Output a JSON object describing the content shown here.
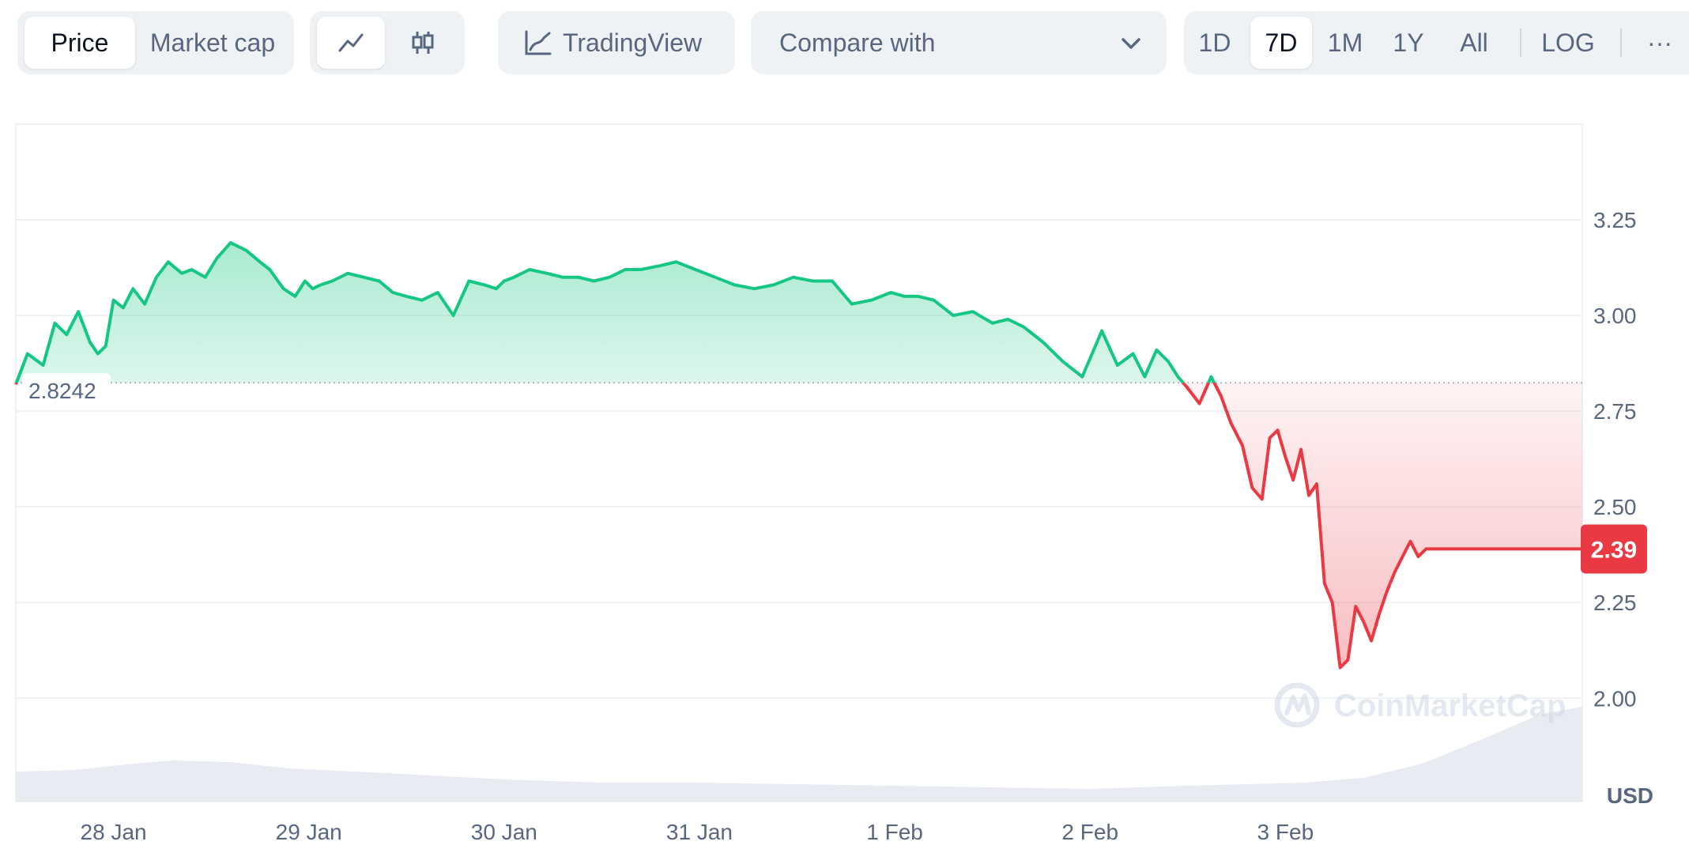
{
  "toolbar": {
    "price_label": "Price",
    "market_cap_label": "Market cap",
    "tradingview_label": "TradingView",
    "compare_label": "Compare with",
    "range_1d": "1D",
    "range_7d": "7D",
    "range_1m": "1M",
    "range_1y": "1Y",
    "range_all": "All",
    "log_label": "LOG",
    "more_label": "···",
    "line_chart_icon": "line-chart-icon",
    "candlestick_icon": "candlestick-icon",
    "tradingview_icon": "chart-line-icon",
    "dropdown_icon": "chevron-down-icon",
    "selected_range": "7D",
    "selected_metric": "Price"
  },
  "colors": {
    "up": "#16c784",
    "down": "#ea3943",
    "grid": "#eff2f5",
    "volume": "#e8ecf2"
  },
  "chart_data": {
    "type": "area",
    "currency_label": "USD",
    "watermark": "CoinMarketCap",
    "baseline_value": 2.8242,
    "baseline_label": "2.8242",
    "current_value": 2.39,
    "current_label": "2.39",
    "ylim": [
      1.73,
      3.5
    ],
    "y_ticks": [
      {
        "value": 2.0,
        "label": "2.00"
      },
      {
        "value": 2.25,
        "label": "2.25"
      },
      {
        "value": 2.5,
        "label": "2.50"
      },
      {
        "value": 2.75,
        "label": "2.75"
      },
      {
        "value": 3.0,
        "label": "3.00"
      },
      {
        "value": 3.25,
        "label": "3.25"
      }
    ],
    "x_ticks": [
      {
        "t": 0.5,
        "label": "28 Jan"
      },
      {
        "t": 1.5,
        "label": "29 Jan"
      },
      {
        "t": 2.5,
        "label": "30 Jan"
      },
      {
        "t": 3.5,
        "label": "31 Jan"
      },
      {
        "t": 4.5,
        "label": "1 Feb"
      },
      {
        "t": 5.5,
        "label": "2 Feb"
      },
      {
        "t": 6.5,
        "label": "3 Feb"
      }
    ],
    "grid": true,
    "series": [
      {
        "x": [
          0.0,
          0.06,
          0.14,
          0.2,
          0.26,
          0.32,
          0.38,
          0.42,
          0.46,
          0.5,
          0.55,
          0.6,
          0.66,
          0.72,
          0.78,
          0.85,
          0.9,
          0.97,
          1.03,
          1.1,
          1.18,
          1.25,
          1.3,
          1.37,
          1.43,
          1.48,
          1.52,
          1.56,
          1.62,
          1.7,
          1.78,
          1.86,
          1.93,
          2.0,
          2.08,
          2.16,
          2.24,
          2.32,
          2.4,
          2.46,
          2.5,
          2.55,
          2.63,
          2.72,
          2.8,
          2.88,
          2.96,
          3.04,
          3.12,
          3.2,
          3.3,
          3.38,
          3.48,
          3.58,
          3.68,
          3.78,
          3.88,
          3.98,
          4.08,
          4.18,
          4.28,
          4.38,
          4.48,
          4.55,
          4.62,
          4.7,
          4.8,
          4.9,
          5.0,
          5.08,
          5.16,
          5.26,
          5.36,
          5.46,
          5.56,
          5.64,
          5.72,
          5.78,
          5.84,
          5.9,
          5.95,
          6.0,
          6.06,
          6.12,
          6.17,
          6.22,
          6.28,
          6.33,
          6.38,
          6.42,
          6.46,
          6.5,
          6.54,
          6.58,
          6.62,
          6.66,
          6.7,
          6.74,
          6.78,
          6.82,
          6.86,
          6.9,
          6.94,
          6.98,
          7.02,
          7.06,
          7.1,
          7.14,
          7.18,
          7.22,
          7.26,
          7.3,
          7.34,
          7.38,
          7.42,
          7.46,
          7.5,
          7.54,
          7.58,
          7.62,
          7.66,
          7.7,
          7.74,
          7.78,
          7.82,
          7.86,
          7.9,
          7.94,
          7.98,
          8.02
        ],
        "values": [
          2.82,
          2.9,
          2.87,
          2.98,
          2.95,
          3.01,
          2.93,
          2.9,
          2.92,
          3.04,
          3.02,
          3.07,
          3.03,
          3.1,
          3.14,
          3.11,
          3.12,
          3.1,
          3.15,
          3.19,
          3.17,
          3.14,
          3.12,
          3.07,
          3.05,
          3.09,
          3.07,
          3.08,
          3.09,
          3.11,
          3.1,
          3.09,
          3.06,
          3.05,
          3.04,
          3.06,
          3.0,
          3.09,
          3.08,
          3.07,
          3.09,
          3.1,
          3.12,
          3.11,
          3.1,
          3.1,
          3.09,
          3.1,
          3.12,
          3.12,
          3.13,
          3.14,
          3.12,
          3.1,
          3.08,
          3.07,
          3.08,
          3.1,
          3.09,
          3.09,
          3.03,
          3.04,
          3.06,
          3.05,
          3.05,
          3.04,
          3.0,
          3.01,
          2.98,
          2.99,
          2.97,
          2.93,
          2.88,
          2.84,
          2.96,
          2.87,
          2.9,
          2.84,
          2.91,
          2.88,
          2.84,
          2.81,
          2.77,
          2.84,
          2.79,
          2.72,
          2.66,
          2.55,
          2.52,
          2.68,
          2.7,
          2.63,
          2.57,
          2.65,
          2.53,
          2.56,
          2.3,
          2.25,
          2.08,
          2.1,
          2.24,
          2.2,
          2.15,
          2.22,
          2.28,
          2.33,
          2.37,
          2.41,
          2.37,
          2.39,
          2.39,
          2.39,
          2.39,
          2.39,
          2.39,
          2.39,
          2.39,
          2.39,
          2.39,
          2.39,
          2.39,
          2.39,
          2.39,
          2.39,
          2.39,
          2.39,
          2.39,
          2.39,
          2.39,
          2.39
        ]
      }
    ]
  }
}
